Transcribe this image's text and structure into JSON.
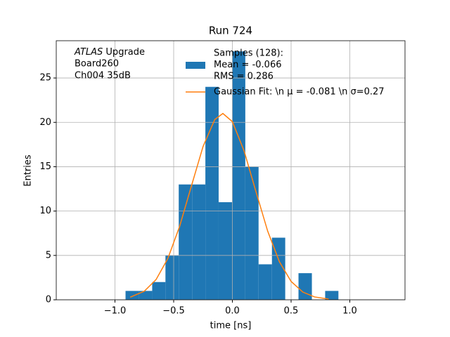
{
  "chart_data": {
    "type": "histogram",
    "title": "Run 724",
    "x_label": "time [ns]",
    "y_label": "Entries",
    "annotation": {
      "emphasis": "ATLAS",
      "lines": [
        "Upgrade",
        "Board260",
        "Ch004 35dB"
      ]
    },
    "bins": [
      -0.91,
      -0.797,
      -0.683,
      -0.57,
      -0.457,
      -0.343,
      -0.23,
      -0.117,
      -0.003,
      0.11,
      0.223,
      0.337,
      0.45,
      0.563,
      0.677,
      0.79,
      0.903
    ],
    "counts": [
      1,
      1,
      2,
      5,
      13,
      13,
      24,
      11,
      28,
      15,
      4,
      7,
      0,
      3,
      0,
      1
    ],
    "hist_name": [
      "Samples (128):",
      " Mean = -0.066",
      " RMS = 0.286"
    ],
    "color": "#1f77b4",
    "fit": {
      "name": "Gaussian Fit: \\n μ = -0.081 \\n σ=0.27",
      "color": "#ff7f0e",
      "x": [
        -0.87,
        -0.75,
        -0.65,
        -0.55,
        -0.45,
        -0.35,
        -0.25,
        -0.15,
        -0.081,
        0.0,
        0.1,
        0.2,
        0.3,
        0.4,
        0.5,
        0.6,
        0.7,
        0.82
      ],
      "values": [
        0.29,
        0.97,
        2.28,
        4.64,
        8.25,
        12.78,
        17.27,
        20.32,
        21,
        20.08,
        16.77,
        12.22,
        7.76,
        4.3,
        2.07,
        0.87,
        0.32,
        0.08
      ]
    },
    "xlim": [
      -1.5,
      1.47
    ],
    "ylim": [
      0,
      29.2
    ],
    "xticks": [
      {
        "value": -1.0,
        "label": "−1.0"
      },
      {
        "value": -0.5,
        "label": "−0.5"
      },
      {
        "value": 0.0,
        "label": "0.0"
      },
      {
        "value": 0.5,
        "label": "0.5"
      },
      {
        "value": 1.0,
        "label": "1.0"
      }
    ],
    "yticks": [
      0,
      5,
      10,
      15,
      20,
      25
    ],
    "grid": true
  }
}
